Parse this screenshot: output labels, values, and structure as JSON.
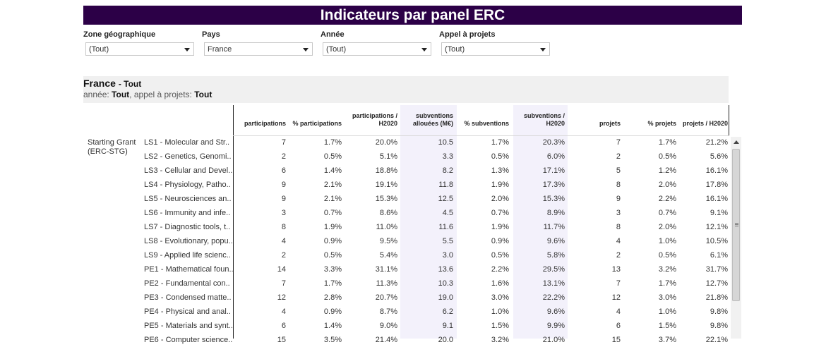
{
  "title": "Indicateurs par panel ERC",
  "filters": [
    {
      "label": "Zone géographique",
      "value": "(Tout)"
    },
    {
      "label": "Pays",
      "value": "France"
    },
    {
      "label": "Année",
      "value": "(Tout)"
    },
    {
      "label": "Appel à projets",
      "value": "(Tout)"
    }
  ],
  "header": {
    "country": "France",
    "country_suffix": "- Tout",
    "year_label": "année:",
    "year_value": "Tout",
    "call_label": ", appel à projets:",
    "call_value": "Tout"
  },
  "columns": [
    "participations",
    "% participations",
    "participations /\nH2020",
    "subventions\nallouées (M€)",
    "% subventions",
    "subventions /\nH2020",
    "projets",
    "% projets",
    "projets /  H2020"
  ],
  "group_label": "Starting Grant\n(ERC-STG)",
  "rows": [
    {
      "label": "LS1 - Molecular and Str..",
      "values": [
        "7",
        "1.7%",
        "20.0%",
        "10.5",
        "1.7%",
        "20.3%",
        "7",
        "1.7%",
        "21.2%"
      ]
    },
    {
      "label": "LS2 - Genetics, Genomi..",
      "values": [
        "2",
        "0.5%",
        "5.1%",
        "3.3",
        "0.5%",
        "6.0%",
        "2",
        "0.5%",
        "5.6%"
      ]
    },
    {
      "label": "LS3 - Cellular and Devel..",
      "values": [
        "6",
        "1.4%",
        "18.8%",
        "8.2",
        "1.3%",
        "17.1%",
        "5",
        "1.2%",
        "16.1%"
      ]
    },
    {
      "label": "LS4 - Physiology, Patho..",
      "values": [
        "9",
        "2.1%",
        "19.1%",
        "11.8",
        "1.9%",
        "17.3%",
        "8",
        "2.0%",
        "17.8%"
      ]
    },
    {
      "label": "LS5 - Neurosciences an..",
      "values": [
        "9",
        "2.1%",
        "15.3%",
        "12.5",
        "2.0%",
        "15.3%",
        "9",
        "2.2%",
        "16.1%"
      ]
    },
    {
      "label": "LS6 - Immunity and infe..",
      "values": [
        "3",
        "0.7%",
        "8.6%",
        "4.5",
        "0.7%",
        "8.9%",
        "3",
        "0.7%",
        "9.1%"
      ]
    },
    {
      "label": "LS7 - Diagnostic tools, t..",
      "values": [
        "8",
        "1.9%",
        "11.0%",
        "11.6",
        "1.9%",
        "11.7%",
        "8",
        "2.0%",
        "12.1%"
      ]
    },
    {
      "label": "LS8 - Evolutionary, popu..",
      "values": [
        "4",
        "0.9%",
        "9.5%",
        "5.5",
        "0.9%",
        "9.6%",
        "4",
        "1.0%",
        "10.5%"
      ]
    },
    {
      "label": "LS9 - Applied life scienc..",
      "values": [
        "2",
        "0.5%",
        "5.4%",
        "3.0",
        "0.5%",
        "5.8%",
        "2",
        "0.5%",
        "6.1%"
      ]
    },
    {
      "label": "PE1 - Mathematical foun..",
      "values": [
        "14",
        "3.3%",
        "31.1%",
        "13.6",
        "2.2%",
        "29.5%",
        "13",
        "3.2%",
        "31.7%"
      ]
    },
    {
      "label": "PE2 - Fundamental con..",
      "values": [
        "7",
        "1.7%",
        "11.3%",
        "10.3",
        "1.6%",
        "13.1%",
        "7",
        "1.7%",
        "12.7%"
      ]
    },
    {
      "label": "PE3 - Condensed matte..",
      "values": [
        "12",
        "2.8%",
        "20.7%",
        "19.0",
        "3.0%",
        "22.2%",
        "12",
        "3.0%",
        "21.8%"
      ]
    },
    {
      "label": "PE4 - Physical and anal..",
      "values": [
        "4",
        "0.9%",
        "8.7%",
        "6.2",
        "1.0%",
        "9.6%",
        "4",
        "1.0%",
        "9.8%"
      ]
    },
    {
      "label": "PE5 - Materials and synt..",
      "values": [
        "6",
        "1.4%",
        "9.0%",
        "9.1",
        "1.5%",
        "9.9%",
        "6",
        "1.5%",
        "9.8%"
      ]
    },
    {
      "label": "PE6 - Computer science..",
      "values": [
        "15",
        "3.5%",
        "21.4%",
        "20.0",
        "3.2%",
        "21.0%",
        "15",
        "3.7%",
        "22.1%"
      ]
    }
  ]
}
